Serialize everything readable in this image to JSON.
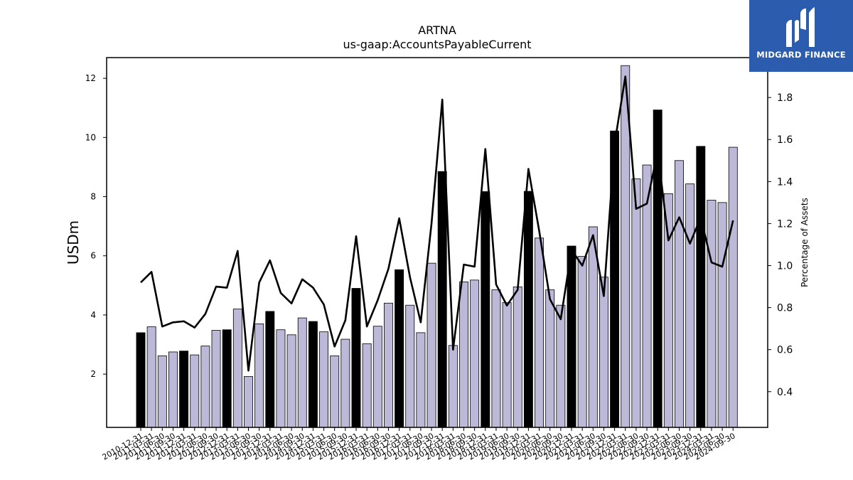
{
  "chart_data": {
    "type": "bar",
    "title": "ARTNA",
    "subtitle": "us-gaap:AccountsPayableCurrent",
    "ylabel": "USDm",
    "y2label": "Percentage of Assets",
    "ylim": [
      0.2,
      12.7
    ],
    "y2lim": [
      0.23,
      1.99
    ],
    "yticks": [
      2,
      4,
      6,
      8,
      10,
      12
    ],
    "y2ticks": [
      0.4,
      0.6,
      0.8,
      1.0,
      1.2,
      1.4,
      1.6,
      1.8
    ],
    "colors": {
      "annual": "#000000",
      "quarter": "#bcb8d8",
      "line": "#000000"
    },
    "categories": [
      "2010-12-31",
      "2011-03-31",
      "2011-06-30",
      "2011-09-30",
      "2011-12-31",
      "2012-03-31",
      "2012-06-30",
      "2012-09-30",
      "2012-12-31",
      "2013-03-31",
      "2013-06-30",
      "2013-09-30",
      "2013-12-31",
      "2014-03-31",
      "2014-06-30",
      "2014-09-30",
      "2014-12-31",
      "2015-03-31",
      "2015-06-30",
      "2015-09-30",
      "2015-12-31",
      "2016-03-31",
      "2016-06-30",
      "2016-09-30",
      "2016-12-31",
      "2017-03-31",
      "2017-06-30",
      "2017-09-30",
      "2017-12-31",
      "2018-03-31",
      "2018-06-30",
      "2018-09-30",
      "2018-12-31",
      "2019-03-31",
      "2019-06-30",
      "2019-09-30",
      "2019-12-31",
      "2020-03-31",
      "2020-06-30",
      "2020-09-30",
      "2020-12-31",
      "2021-03-31",
      "2021-06-30",
      "2021-09-30",
      "2021-12-31",
      "2022-03-31",
      "2022-06-30",
      "2022-09-30",
      "2022-12-31",
      "2023-03-31",
      "2023-06-30",
      "2023-09-30",
      "2023-12-31",
      "2024-03-31",
      "2024-06-30",
      "2024-09-30"
    ],
    "series": [
      {
        "values": [
          3.4,
          3.6,
          2.62,
          2.75,
          2.78,
          2.65,
          2.95,
          3.48,
          3.5,
          4.2,
          1.92,
          3.7,
          4.12,
          3.5,
          3.33,
          3.9,
          3.78,
          3.43,
          2.62,
          3.18,
          4.9,
          3.03,
          3.62,
          4.4,
          5.53,
          4.33,
          3.4,
          5.75,
          8.85,
          2.97,
          5.12,
          5.18,
          8.17,
          4.85,
          4.42,
          4.95,
          8.18,
          6.6,
          4.85,
          4.33,
          6.33,
          5.98,
          6.98,
          5.28,
          10.22,
          12.43,
          8.6,
          9.07,
          10.93,
          8.1,
          9.22,
          8.43,
          9.7,
          7.88,
          7.8,
          9.67
        ]
      },
      {
        "values": [
          0.92,
          0.97,
          0.71,
          0.73,
          0.735,
          0.705,
          0.77,
          0.9,
          0.895,
          1.07,
          0.5,
          0.92,
          1.025,
          0.87,
          0.82,
          0.935,
          0.895,
          0.815,
          0.615,
          0.74,
          1.14,
          0.71,
          0.835,
          0.985,
          1.225,
          0.945,
          0.73,
          1.2,
          1.79,
          0.6,
          1.005,
          0.995,
          1.555,
          0.91,
          0.81,
          0.885,
          1.46,
          1.165,
          0.84,
          0.745,
          1.075,
          1.0,
          1.145,
          0.855,
          1.58,
          1.9,
          1.27,
          1.295,
          1.545,
          1.12,
          1.23,
          1.105,
          1.23,
          1.015,
          0.995,
          1.215
        ]
      }
    ]
  },
  "logo": {
    "text": "MIDGARD FINANCE"
  }
}
